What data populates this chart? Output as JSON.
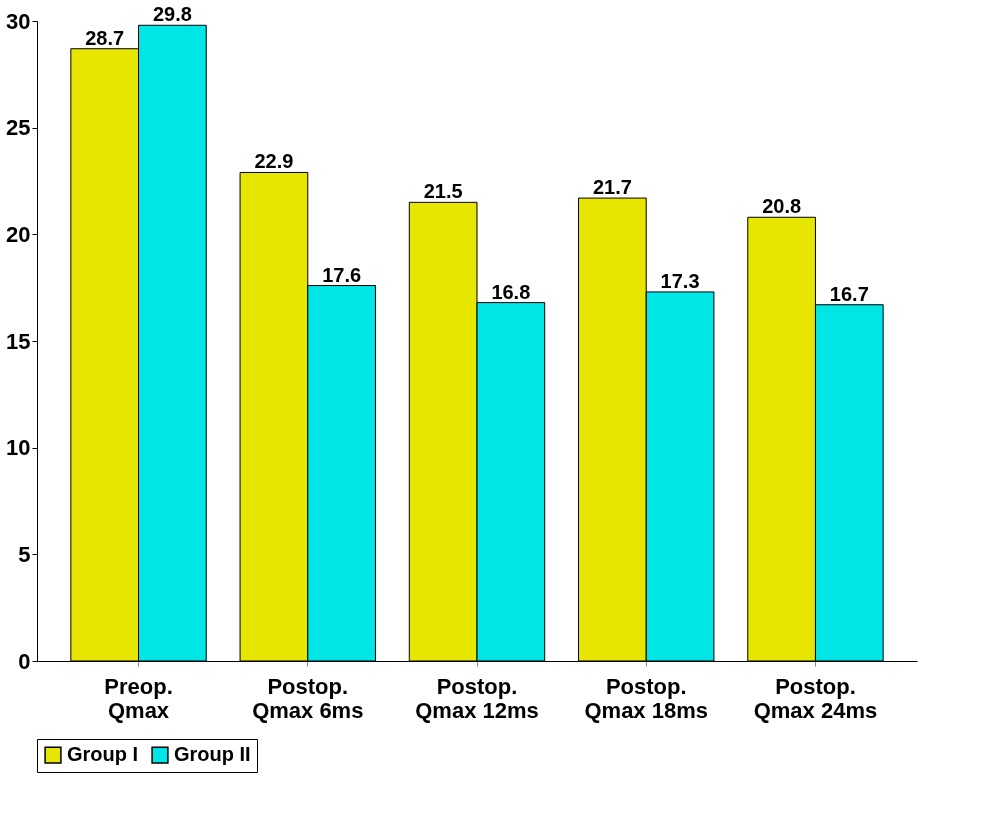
{
  "chart_data": {
    "type": "bar",
    "categories": [
      "Preop. Qmax",
      "Postop. Qmax 6ms",
      "Postop. Qmax 12ms",
      "Postop. Qmax 18ms",
      "Postop. Qmax 24ms"
    ],
    "series": [
      {
        "name": "Group I",
        "color": "#e6e600",
        "values": [
          28.7,
          22.9,
          21.5,
          21.7,
          20.8
        ]
      },
      {
        "name": "Group II",
        "color": "#00e6e6",
        "values": [
          29.8,
          17.6,
          16.8,
          17.3,
          16.7
        ]
      }
    ],
    "ylim": [
      0,
      30
    ],
    "yticks": [
      0,
      5,
      10,
      15,
      20,
      25,
      30
    ],
    "grid": false,
    "legend": "bottom",
    "data_labels": true
  }
}
